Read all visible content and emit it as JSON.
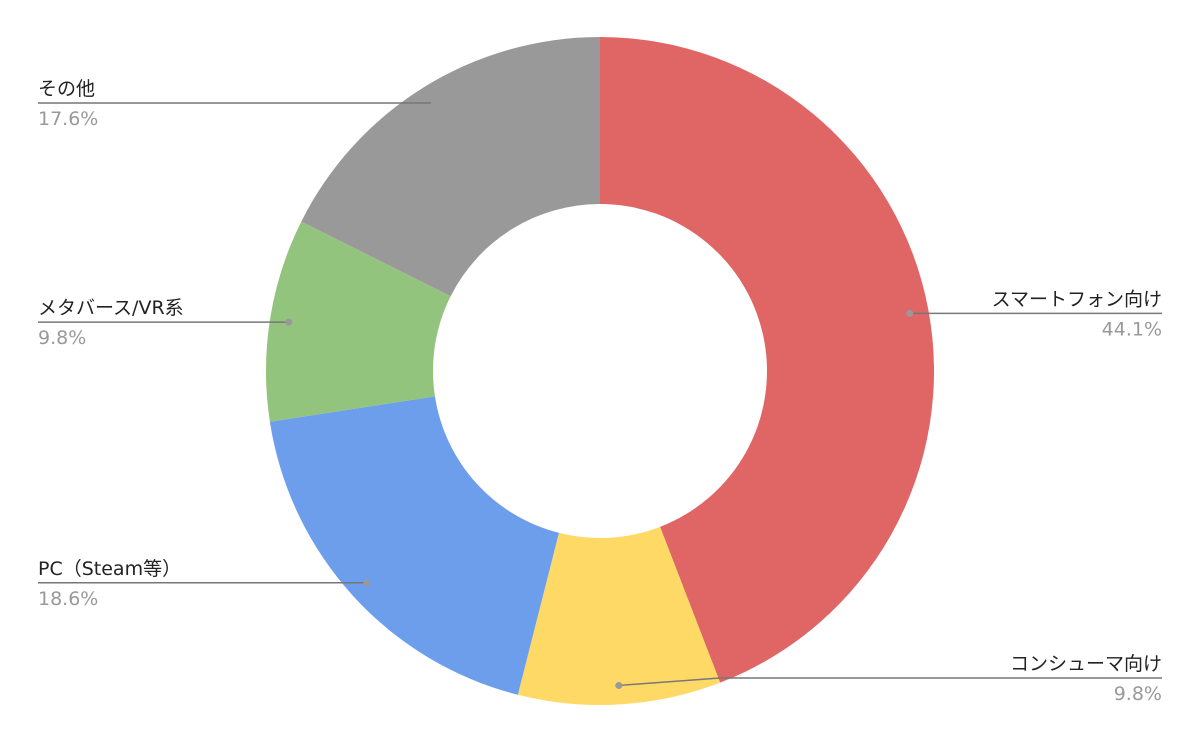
{
  "chart_data": {
    "type": "pie",
    "categories": [
      "スマートフォン向け",
      "コンシューマ向け",
      "PC（Steam等）",
      "メタバース/VR系",
      "その他"
    ],
    "values": [
      44.1,
      9.8,
      18.6,
      9.8,
      17.6
    ],
    "value_labels": [
      "44.1%",
      "9.8%",
      "18.6%",
      "9.8%",
      "17.6%"
    ],
    "colors": [
      "#e06666",
      "#ffd966",
      "#6d9eeb",
      "#93c47d",
      "#999999"
    ]
  }
}
